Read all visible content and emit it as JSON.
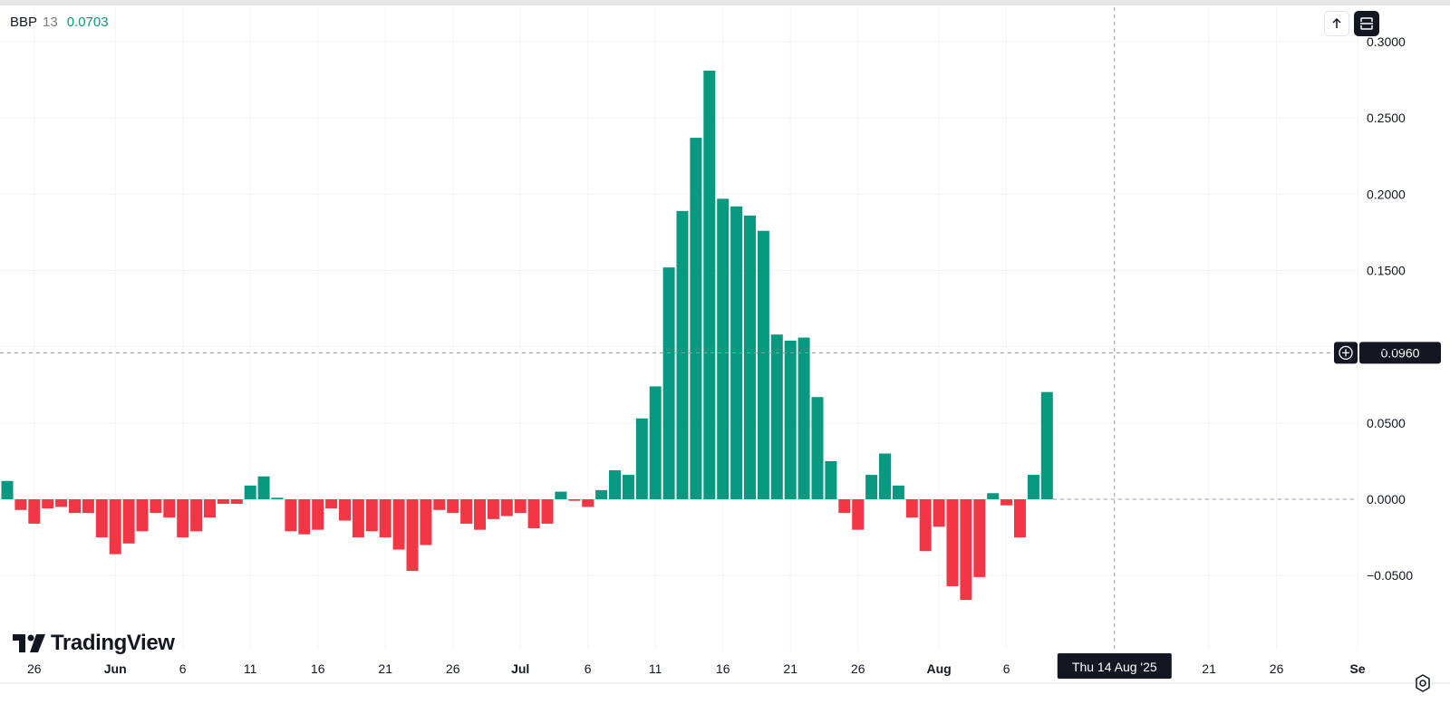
{
  "indicator": {
    "name": "BBP",
    "param": "13",
    "value": "0.0703"
  },
  "brand": {
    "name": "TradingView"
  },
  "crosshair": {
    "price_label": "0.0960",
    "date_label": "Thu 14 Aug '25"
  },
  "colors": {
    "positive": "#089981",
    "negative": "#f23645",
    "grid": "#f0f3fa",
    "text": "#131722"
  },
  "icons": {
    "scroll_up": "arrow-up-icon",
    "expand": "expand-icon",
    "add_alert": "plus-circle-icon",
    "settings": "settings-icon"
  },
  "chart_data": {
    "type": "bar",
    "title": "",
    "xlabel": "",
    "ylabel": "",
    "ylim": [
      -0.075,
      0.3
    ],
    "grid": true,
    "y_ticks": [
      {
        "value": 0.3,
        "label": "0.3000"
      },
      {
        "value": 0.25,
        "label": "0.2500"
      },
      {
        "value": 0.2,
        "label": "0.2000"
      },
      {
        "value": 0.15,
        "label": "0.1500"
      },
      {
        "value": 0.1,
        "label": "0.1000"
      },
      {
        "value": 0.05,
        "label": "0.0500"
      },
      {
        "value": 0.0,
        "label": "0.0000"
      },
      {
        "value": -0.05,
        "label": "−0.0500"
      }
    ],
    "x_ticks": [
      {
        "date": "2025-05-26",
        "label": "26"
      },
      {
        "date": "2025-06-01",
        "label": "Jun"
      },
      {
        "date": "2025-06-06",
        "label": "6"
      },
      {
        "date": "2025-06-11",
        "label": "11"
      },
      {
        "date": "2025-06-16",
        "label": "16"
      },
      {
        "date": "2025-06-21",
        "label": "21"
      },
      {
        "date": "2025-06-26",
        "label": "26"
      },
      {
        "date": "2025-07-01",
        "label": "Jul"
      },
      {
        "date": "2025-07-06",
        "label": "6"
      },
      {
        "date": "2025-07-11",
        "label": "11"
      },
      {
        "date": "2025-07-16",
        "label": "16"
      },
      {
        "date": "2025-07-21",
        "label": "21"
      },
      {
        "date": "2025-07-26",
        "label": "26"
      },
      {
        "date": "2025-08-01",
        "label": "Aug"
      },
      {
        "date": "2025-08-06",
        "label": "6"
      },
      {
        "date": "2025-08-21",
        "label": "21"
      },
      {
        "date": "2025-08-26",
        "label": "26"
      },
      {
        "date": "2025-09-01",
        "label": "Se"
      }
    ],
    "x_range": [
      "2025-05-24",
      "2025-09-03"
    ],
    "bars": [
      {
        "date": "2025-05-24",
        "value": 0.012
      },
      {
        "date": "2025-05-25",
        "value": -0.007
      },
      {
        "date": "2025-05-26",
        "value": -0.016
      },
      {
        "date": "2025-05-27",
        "value": -0.006
      },
      {
        "date": "2025-05-28",
        "value": -0.005
      },
      {
        "date": "2025-05-29",
        "value": -0.009
      },
      {
        "date": "2025-05-30",
        "value": -0.009
      },
      {
        "date": "2025-05-31",
        "value": -0.025
      },
      {
        "date": "2025-06-01",
        "value": -0.036
      },
      {
        "date": "2025-06-02",
        "value": -0.029
      },
      {
        "date": "2025-06-03",
        "value": -0.021
      },
      {
        "date": "2025-06-04",
        "value": -0.009
      },
      {
        "date": "2025-06-05",
        "value": -0.012
      },
      {
        "date": "2025-06-06",
        "value": -0.025
      },
      {
        "date": "2025-06-07",
        "value": -0.021
      },
      {
        "date": "2025-06-08",
        "value": -0.012
      },
      {
        "date": "2025-06-09",
        "value": -0.003
      },
      {
        "date": "2025-06-10",
        "value": -0.003
      },
      {
        "date": "2025-06-11",
        "value": 0.009
      },
      {
        "date": "2025-06-12",
        "value": 0.015
      },
      {
        "date": "2025-06-13",
        "value": 0.001
      },
      {
        "date": "2025-06-14",
        "value": -0.021
      },
      {
        "date": "2025-06-15",
        "value": -0.023
      },
      {
        "date": "2025-06-16",
        "value": -0.02
      },
      {
        "date": "2025-06-17",
        "value": -0.006
      },
      {
        "date": "2025-06-18",
        "value": -0.014
      },
      {
        "date": "2025-06-19",
        "value": -0.025
      },
      {
        "date": "2025-06-20",
        "value": -0.021
      },
      {
        "date": "2025-06-21",
        "value": -0.025
      },
      {
        "date": "2025-06-22",
        "value": -0.033
      },
      {
        "date": "2025-06-23",
        "value": -0.047
      },
      {
        "date": "2025-06-24",
        "value": -0.03
      },
      {
        "date": "2025-06-25",
        "value": -0.007
      },
      {
        "date": "2025-06-26",
        "value": -0.009
      },
      {
        "date": "2025-06-27",
        "value": -0.016
      },
      {
        "date": "2025-06-28",
        "value": -0.02
      },
      {
        "date": "2025-06-29",
        "value": -0.013
      },
      {
        "date": "2025-06-30",
        "value": -0.011
      },
      {
        "date": "2025-07-01",
        "value": -0.009
      },
      {
        "date": "2025-07-02",
        "value": -0.019
      },
      {
        "date": "2025-07-03",
        "value": -0.016
      },
      {
        "date": "2025-07-04",
        "value": 0.005
      },
      {
        "date": "2025-07-05",
        "value": -0.001
      },
      {
        "date": "2025-07-06",
        "value": -0.005
      },
      {
        "date": "2025-07-07",
        "value": 0.006
      },
      {
        "date": "2025-07-08",
        "value": 0.019
      },
      {
        "date": "2025-07-09",
        "value": 0.016
      },
      {
        "date": "2025-07-10",
        "value": 0.053
      },
      {
        "date": "2025-07-11",
        "value": 0.074
      },
      {
        "date": "2025-07-12",
        "value": 0.152
      },
      {
        "date": "2025-07-13",
        "value": 0.189
      },
      {
        "date": "2025-07-14",
        "value": 0.237
      },
      {
        "date": "2025-07-15",
        "value": 0.281
      },
      {
        "date": "2025-07-16",
        "value": 0.197
      },
      {
        "date": "2025-07-17",
        "value": 0.192
      },
      {
        "date": "2025-07-18",
        "value": 0.186
      },
      {
        "date": "2025-07-19",
        "value": 0.176
      },
      {
        "date": "2025-07-20",
        "value": 0.108
      },
      {
        "date": "2025-07-21",
        "value": 0.104
      },
      {
        "date": "2025-07-22",
        "value": 0.106
      },
      {
        "date": "2025-07-23",
        "value": 0.067
      },
      {
        "date": "2025-07-24",
        "value": 0.025
      },
      {
        "date": "2025-07-25",
        "value": -0.009
      },
      {
        "date": "2025-07-26",
        "value": -0.02
      },
      {
        "date": "2025-07-27",
        "value": 0.016
      },
      {
        "date": "2025-07-28",
        "value": 0.03
      },
      {
        "date": "2025-07-29",
        "value": 0.009
      },
      {
        "date": "2025-07-30",
        "value": -0.012
      },
      {
        "date": "2025-07-31",
        "value": -0.034
      },
      {
        "date": "2025-08-01",
        "value": -0.018
      },
      {
        "date": "2025-08-02",
        "value": -0.057
      },
      {
        "date": "2025-08-03",
        "value": -0.066
      },
      {
        "date": "2025-08-04",
        "value": -0.051
      },
      {
        "date": "2025-08-05",
        "value": 0.004
      },
      {
        "date": "2025-08-06",
        "value": -0.004
      },
      {
        "date": "2025-08-07",
        "value": -0.025
      },
      {
        "date": "2025-08-08",
        "value": 0.016
      },
      {
        "date": "2025-08-09",
        "value": 0.0703
      }
    ],
    "crosshair": {
      "date": "2025-08-14",
      "value": 0.096
    }
  }
}
